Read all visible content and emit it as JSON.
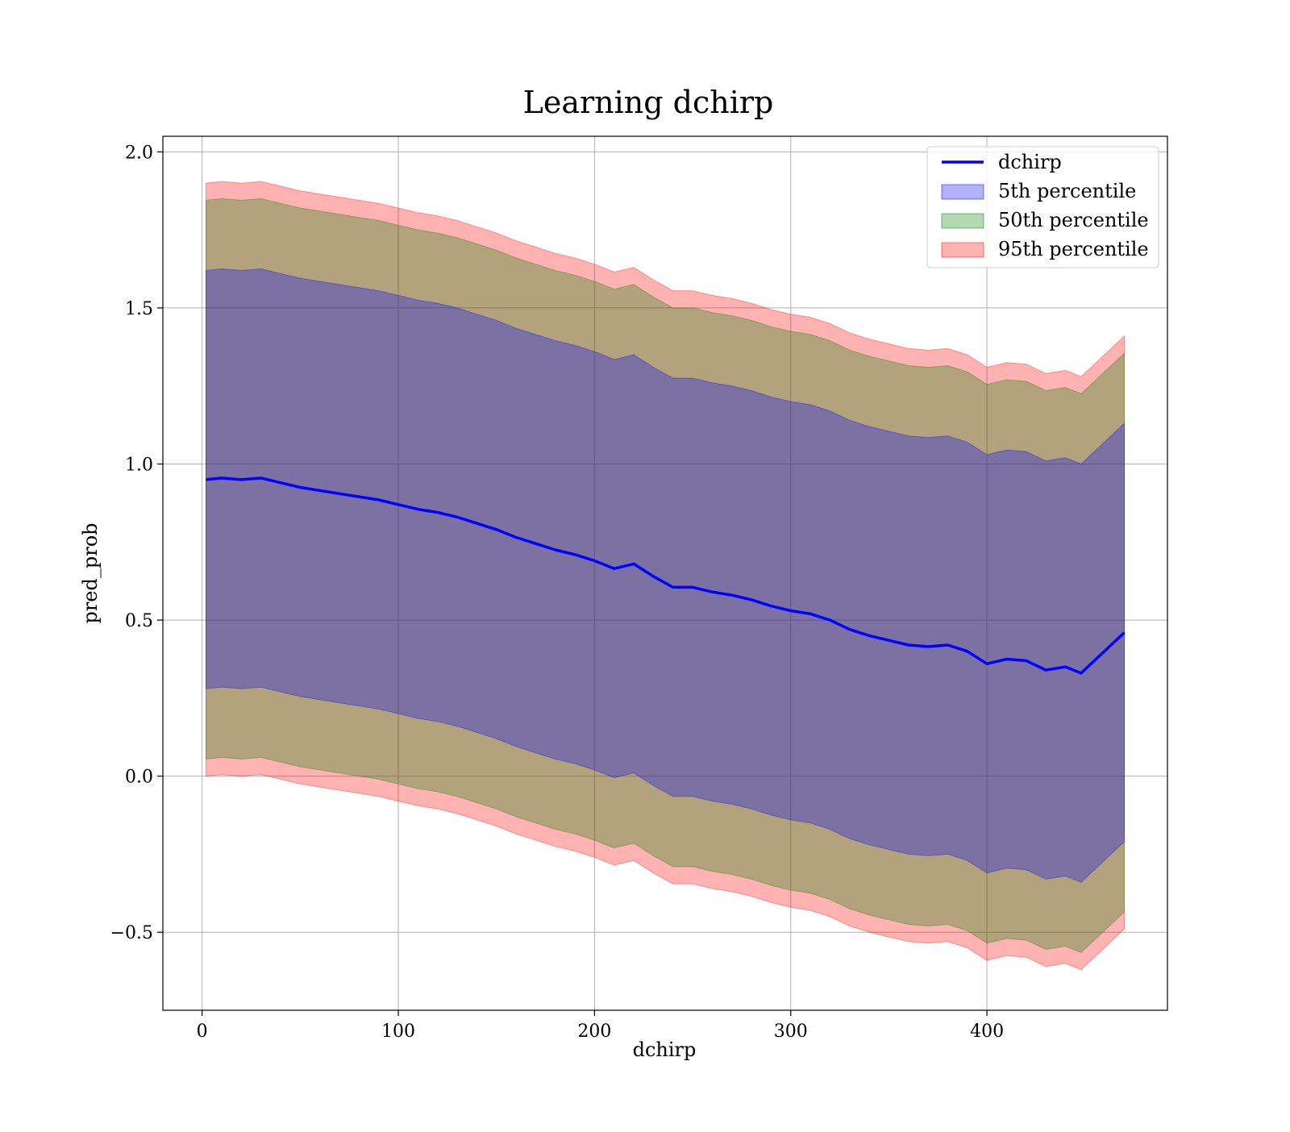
{
  "chart_data": {
    "type": "area",
    "title": "Learning dchirp",
    "xlabel": "dchirp",
    "ylabel": "pred_prob",
    "xlim": [
      -20,
      492
    ],
    "ylim": [
      -0.75,
      2.05
    ],
    "xticks": [
      0,
      100,
      200,
      300,
      400
    ],
    "xtick_labels": [
      "0",
      "100",
      "200",
      "300",
      "400"
    ],
    "yticks": [
      -0.5,
      0.0,
      0.5,
      1.0,
      1.5,
      2.0
    ],
    "ytick_labels": [
      "−0.5",
      "0.0",
      "0.5",
      "1.0",
      "1.5",
      "2.0"
    ],
    "grid": true,
    "legend_position": "top-right",
    "line": {
      "name": "dchirp",
      "color": "#0000ff",
      "x": [
        2,
        10,
        20,
        30,
        40,
        50,
        60,
        70,
        80,
        90,
        100,
        110,
        120,
        130,
        140,
        150,
        160,
        170,
        180,
        190,
        200,
        210,
        220,
        230,
        240,
        250,
        260,
        270,
        280,
        290,
        300,
        310,
        320,
        330,
        340,
        350,
        360,
        370,
        380,
        390,
        400,
        410,
        420,
        430,
        440,
        448,
        470
      ],
      "y": [
        0.95,
        0.955,
        0.95,
        0.955,
        0.94,
        0.925,
        0.915,
        0.905,
        0.895,
        0.885,
        0.87,
        0.855,
        0.845,
        0.83,
        0.81,
        0.79,
        0.765,
        0.745,
        0.725,
        0.71,
        0.69,
        0.665,
        0.68,
        0.64,
        0.605,
        0.605,
        0.59,
        0.58,
        0.565,
        0.545,
        0.53,
        0.52,
        0.5,
        0.47,
        0.45,
        0.435,
        0.42,
        0.415,
        0.42,
        0.4,
        0.36,
        0.375,
        0.37,
        0.34,
        0.35,
        0.33,
        0.46
      ]
    },
    "bands": [
      {
        "name": "5th percentile",
        "color": "#0000ff",
        "offset": [
          0.67,
          0.67,
          0.67,
          0.67,
          0.67,
          0.67,
          0.67,
          0.67,
          0.67,
          0.67,
          0.67,
          0.67,
          0.67,
          0.67,
          0.67,
          0.67,
          0.67,
          0.67,
          0.67,
          0.67,
          0.67,
          0.67,
          0.67,
          0.67,
          0.67,
          0.67,
          0.67,
          0.67,
          0.67,
          0.67,
          0.67,
          0.67,
          0.67,
          0.67,
          0.67,
          0.67,
          0.67,
          0.67,
          0.67,
          0.67,
          0.67,
          0.67,
          0.67,
          0.67,
          0.67,
          0.67,
          0.67
        ]
      },
      {
        "name": "50th percentile",
        "color": "#008000",
        "offset": [
          0.895,
          0.895,
          0.895,
          0.895,
          0.895,
          0.895,
          0.895,
          0.895,
          0.895,
          0.895,
          0.895,
          0.895,
          0.895,
          0.895,
          0.895,
          0.895,
          0.895,
          0.895,
          0.895,
          0.895,
          0.895,
          0.895,
          0.895,
          0.895,
          0.895,
          0.895,
          0.895,
          0.895,
          0.895,
          0.895,
          0.895,
          0.895,
          0.895,
          0.895,
          0.895,
          0.895,
          0.895,
          0.895,
          0.895,
          0.895,
          0.895,
          0.895,
          0.895,
          0.895,
          0.895,
          0.895,
          0.895
        ]
      },
      {
        "name": "95th percentile",
        "color": "#ff0000",
        "offset": [
          0.95,
          0.95,
          0.95,
          0.95,
          0.95,
          0.95,
          0.95,
          0.95,
          0.95,
          0.95,
          0.95,
          0.95,
          0.95,
          0.95,
          0.95,
          0.95,
          0.95,
          0.95,
          0.95,
          0.95,
          0.95,
          0.95,
          0.95,
          0.95,
          0.95,
          0.95,
          0.95,
          0.95,
          0.95,
          0.95,
          0.95,
          0.95,
          0.95,
          0.95,
          0.95,
          0.95,
          0.95,
          0.95,
          0.95,
          0.95,
          0.95,
          0.95,
          0.95,
          0.95,
          0.95,
          0.95,
          0.95
        ]
      }
    ],
    "legend": [
      "dchirp",
      "5th percentile",
      "50th percentile",
      "95th percentile"
    ]
  }
}
